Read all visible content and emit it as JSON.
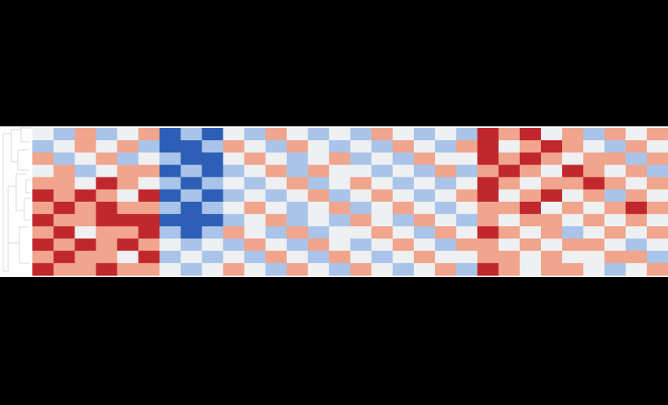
{
  "chart_data": {
    "type": "heatmap",
    "zlim": [
      -2,
      2
    ],
    "colors": [
      "#2c5fb5",
      "#a9c4e8",
      "#eef0f2",
      "#f0a58c",
      "#c0282d"
    ],
    "values": [
      [
        0,
        -1,
        1,
        -1,
        0,
        1,
        -2,
        -1,
        -2,
        0,
        -1,
        1,
        0,
        -1,
        0,
        -1,
        1,
        0,
        -1,
        0,
        -1,
        2,
        1,
        2,
        0,
        1,
        -1,
        1,
        0,
        1
      ],
      [
        -1,
        0,
        1,
        0,
        1,
        -1,
        -2,
        -2,
        -1,
        1,
        0,
        -1,
        1,
        0,
        -1,
        0,
        -1,
        1,
        0,
        -1,
        1,
        2,
        0,
        1,
        2,
        1,
        0,
        -1,
        1,
        0
      ],
      [
        1,
        -1,
        0,
        1,
        -1,
        0,
        -1,
        -2,
        -2,
        0,
        1,
        0,
        -1,
        0,
        1,
        -1,
        0,
        -1,
        1,
        0,
        0,
        2,
        1,
        2,
        1,
        0,
        1,
        1,
        -1,
        1
      ],
      [
        0,
        1,
        -1,
        0,
        1,
        1,
        -2,
        -1,
        -2,
        -1,
        0,
        1,
        -1,
        1,
        0,
        0,
        -1,
        0,
        -1,
        1,
        -1,
        1,
        2,
        1,
        0,
        2,
        1,
        0,
        1,
        -1
      ],
      [
        1,
        1,
        0,
        2,
        1,
        0,
        -1,
        -2,
        -1,
        0,
        -1,
        0,
        1,
        -1,
        0,
        1,
        0,
        -1,
        0,
        -1,
        0,
        2,
        1,
        0,
        1,
        1,
        2,
        1,
        0,
        1
      ],
      [
        2,
        1,
        2,
        1,
        0,
        2,
        -2,
        -1,
        -2,
        -1,
        0,
        -1,
        0,
        1,
        -1,
        0,
        1,
        0,
        -1,
        0,
        1,
        2,
        0,
        1,
        2,
        0,
        1,
        -1,
        1,
        0
      ],
      [
        1,
        2,
        1,
        2,
        1,
        1,
        -1,
        -2,
        -1,
        0,
        1,
        0,
        -1,
        0,
        1,
        -1,
        0,
        1,
        0,
        -1,
        0,
        1,
        1,
        2,
        0,
        1,
        0,
        1,
        2,
        1
      ],
      [
        2,
        1,
        1,
        2,
        2,
        2,
        -2,
        -2,
        -2,
        -1,
        0,
        1,
        -1,
        0,
        -1,
        1,
        0,
        -1,
        1,
        0,
        -1,
        1,
        0,
        1,
        1,
        0,
        1,
        0,
        1,
        0
      ],
      [
        1,
        2,
        0,
        1,
        1,
        2,
        -1,
        -2,
        -1,
        1,
        0,
        -1,
        1,
        -1,
        0,
        0,
        1,
        0,
        -1,
        1,
        0,
        2,
        1,
        0,
        1,
        -1,
        0,
        1,
        0,
        1
      ],
      [
        2,
        1,
        2,
        1,
        2,
        1,
        0,
        -1,
        0,
        -1,
        1,
        0,
        -1,
        1,
        0,
        -1,
        0,
        1,
        0,
        -1,
        1,
        1,
        0,
        1,
        0,
        1,
        1,
        0,
        -1,
        0
      ],
      [
        1,
        2,
        1,
        1,
        0,
        2,
        -1,
        0,
        -1,
        0,
        -1,
        1,
        0,
        -1,
        1,
        0,
        -1,
        0,
        1,
        0,
        0,
        1,
        1,
        0,
        1,
        0,
        0,
        1,
        1,
        -1
      ],
      [
        2,
        1,
        1,
        2,
        1,
        1,
        0,
        -1,
        0,
        1,
        0,
        -1,
        1,
        0,
        -1,
        1,
        0,
        -1,
        0,
        1,
        -1,
        2,
        1,
        0,
        1,
        1,
        0,
        -1,
        0,
        1
      ]
    ]
  }
}
